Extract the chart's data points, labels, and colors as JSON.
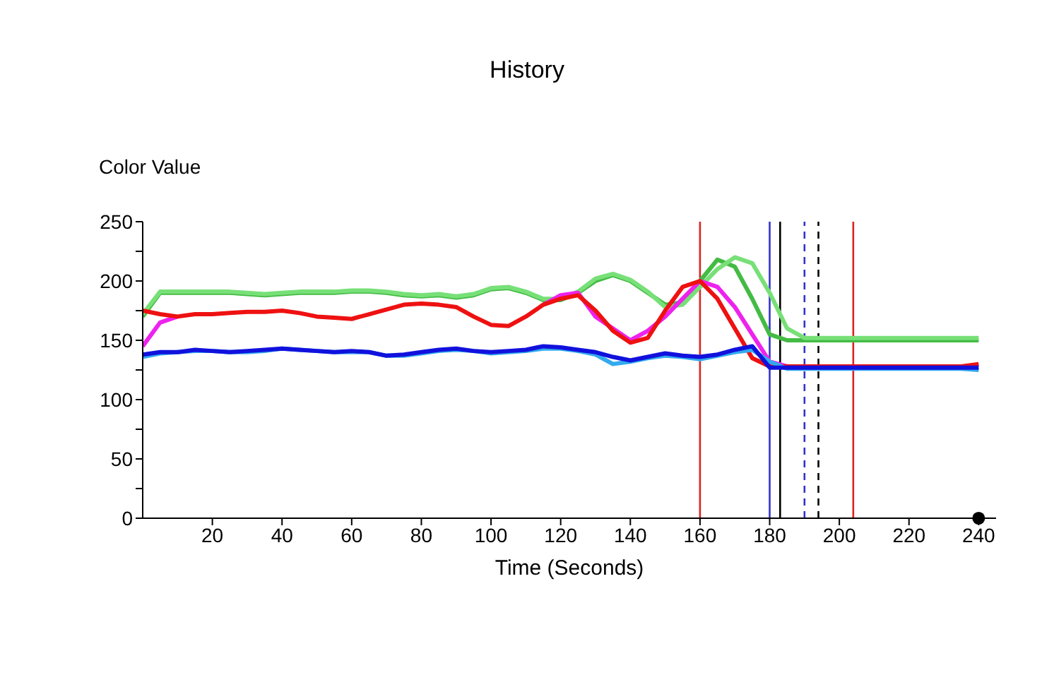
{
  "chart_data": {
    "type": "line",
    "title": "History",
    "xlabel": "Time (Seconds)",
    "ylabel": "Color Value",
    "x": [
      0,
      5,
      10,
      15,
      20,
      25,
      30,
      35,
      40,
      45,
      50,
      55,
      60,
      65,
      70,
      75,
      80,
      85,
      90,
      95,
      100,
      105,
      110,
      115,
      120,
      125,
      130,
      135,
      140,
      145,
      150,
      155,
      160,
      165,
      170,
      175,
      180,
      185,
      190,
      195,
      200,
      205,
      210,
      215,
      220,
      225,
      230,
      235,
      240
    ],
    "xlim": [
      0,
      245
    ],
    "xticks": [
      20,
      40,
      60,
      80,
      100,
      120,
      140,
      160,
      180,
      200,
      220,
      240
    ],
    "ylim": [
      0,
      250
    ],
    "yticks": [
      0,
      {
        "value": 25,
        "label": null
      },
      50,
      {
        "value": 75,
        "label": null
      },
      100,
      {
        "value": 125,
        "label": null
      },
      150,
      {
        "value": 175,
        "label": null
      },
      200,
      {
        "value": 225,
        "label": null
      },
      250
    ],
    "grid": false,
    "legend": false,
    "line_style": "solid",
    "series": [
      {
        "color": "#44bb44",
        "values": [
          170,
          190,
          190,
          190,
          190,
          190,
          189,
          188,
          189,
          190,
          190,
          190,
          191,
          191,
          190,
          188,
          187,
          188,
          186,
          188,
          193,
          194,
          190,
          184,
          184,
          190,
          200,
          205,
          200,
          190,
          180,
          182,
          200,
          218,
          212,
          185,
          155,
          150,
          150,
          150,
          150,
          150,
          150,
          150,
          150,
          150,
          150,
          150,
          150
        ]
      },
      {
        "color": "#77e077",
        "values": [
          172,
          191,
          191,
          191,
          191,
          191,
          190,
          189,
          190,
          191,
          191,
          191,
          192,
          192,
          191,
          189,
          188,
          189,
          187,
          189,
          194,
          195,
          191,
          185,
          185,
          191,
          202,
          206,
          201,
          191,
          178,
          180,
          195,
          210,
          220,
          215,
          190,
          160,
          152,
          152,
          152,
          152,
          152,
          152,
          152,
          152,
          152,
          152,
          152
        ]
      },
      {
        "color": "#ee22ee",
        "values": [
          145,
          165,
          170,
          null,
          null,
          null,
          null,
          null,
          null,
          null,
          null,
          null,
          null,
          null,
          null,
          null,
          null,
          null,
          null,
          null,
          null,
          null,
          null,
          180,
          188,
          190,
          170,
          160,
          150,
          158,
          170,
          185,
          200,
          195,
          178,
          155,
          132,
          128,
          null,
          null,
          null,
          null,
          null,
          null,
          null,
          null,
          null,
          null,
          null
        ]
      },
      {
        "color": "#ee1111",
        "values": [
          175,
          172,
          170,
          172,
          172,
          173,
          174,
          174,
          175,
          173,
          170,
          169,
          168,
          172,
          176,
          180,
          181,
          180,
          178,
          170,
          163,
          162,
          170,
          180,
          185,
          188,
          175,
          158,
          148,
          152,
          175,
          195,
          200,
          185,
          160,
          135,
          128,
          128,
          128,
          128,
          128,
          128,
          128,
          128,
          128,
          128,
          128,
          128,
          130
        ]
      },
      {
        "color": "#33aaee",
        "values": [
          136,
          139,
          140,
          141,
          141,
          140,
          140,
          141,
          143,
          142,
          141,
          140,
          140,
          140,
          137,
          137,
          139,
          141,
          142,
          141,
          139,
          140,
          141,
          143,
          143,
          141,
          138,
          130,
          132,
          135,
          137,
          136,
          134,
          137,
          140,
          142,
          132,
          126,
          126,
          126,
          126,
          126,
          126,
          126,
          126,
          126,
          126,
          126,
          125
        ]
      },
      {
        "color": "#1111dd",
        "values": [
          138,
          140,
          140,
          142,
          141,
          140,
          141,
          142,
          143,
          142,
          141,
          140,
          141,
          140,
          137,
          138,
          140,
          142,
          143,
          141,
          140,
          141,
          142,
          145,
          144,
          142,
          140,
          136,
          133,
          136,
          139,
          137,
          136,
          138,
          142,
          145,
          127,
          127,
          127,
          127,
          127,
          127,
          127,
          127,
          127,
          127,
          127,
          127,
          127
        ]
      },
      {
        "type": "scatter",
        "color": "#000000",
        "marker": "circle",
        "x": [
          240
        ],
        "values": [
          0
        ]
      }
    ],
    "ref_lines": [
      {
        "axis": "x",
        "value": 160,
        "color": "#dd2222",
        "line_style": "solid"
      },
      {
        "axis": "x",
        "value": 180,
        "color": "#3333cc",
        "line_style": "solid"
      },
      {
        "axis": "x",
        "value": 183,
        "color": "#000000",
        "line_style": "solid"
      },
      {
        "axis": "x",
        "value": 190,
        "color": "#3333cc",
        "line_style": "dashed"
      },
      {
        "axis": "x",
        "value": 194,
        "color": "#000000",
        "line_style": "dashed"
      },
      {
        "axis": "x",
        "value": 204,
        "color": "#dd2222",
        "line_style": "solid"
      }
    ]
  }
}
